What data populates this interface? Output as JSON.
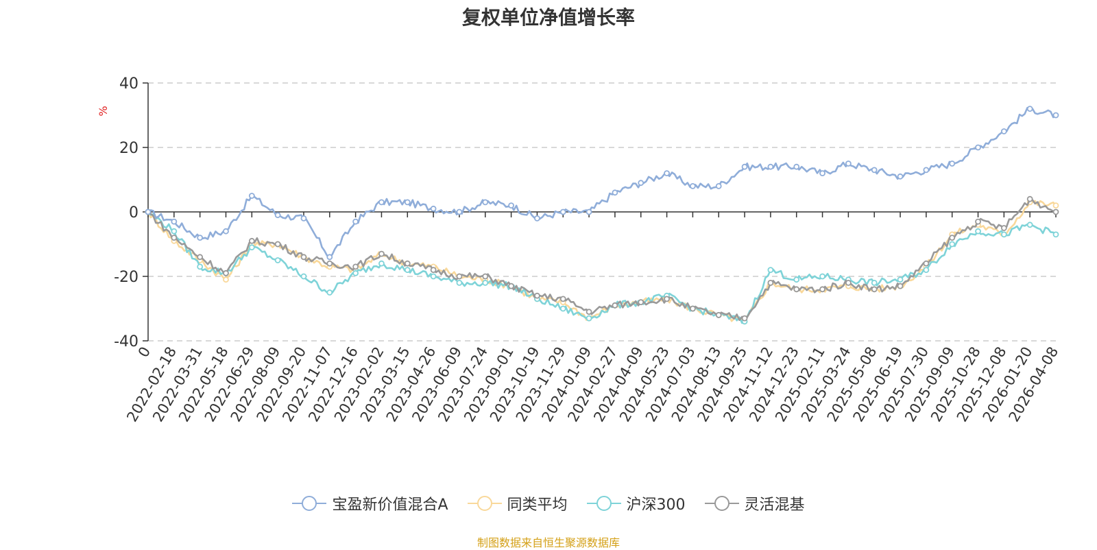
{
  "chart_data": {
    "type": "line",
    "title": "复权单位净值增长率",
    "ylabel": "%",
    "xlabel": "",
    "ylim": [
      -40,
      40
    ],
    "yticks": [
      "40",
      "20",
      "0",
      "-20",
      "-40"
    ],
    "categories": [
      "0",
      "2022-02-18",
      "2022-03-31",
      "2022-05-18",
      "2022-06-29",
      "2022-08-09",
      "2022-09-20",
      "2022-11-07",
      "2022-12-16",
      "2023-02-02",
      "2023-03-15",
      "2023-04-26",
      "2023-06-09",
      "2023-07-24",
      "2023-09-01",
      "2023-10-19",
      "2023-11-29",
      "2024-01-09",
      "2024-02-27",
      "2024-04-09",
      "2024-05-23",
      "2024-07-03",
      "2024-08-13",
      "2024-09-25",
      "2024-11-12",
      "2024-12-23",
      "2025-02-11",
      "2025-03-24",
      "2025-05-08",
      "2025-06-19",
      "2025-07-30",
      "2025-09-09",
      "2025-10-28",
      "2025-12-08",
      "2026-01-20",
      "2026-04-08"
    ],
    "series": [
      {
        "name": "宝盈新价值混合A",
        "color": "#8fadd9",
        "values": [
          0,
          -3,
          -8,
          -6,
          5,
          -1,
          -2,
          -14,
          -3,
          3,
          3,
          1,
          0,
          3,
          2,
          -2,
          0,
          0,
          6,
          9,
          12,
          8,
          8,
          14,
          14,
          14,
          12,
          15,
          13,
          11,
          13,
          15,
          20,
          25,
          32,
          30
        ]
      },
      {
        "name": "同类平均",
        "color": "#f9d89a",
        "values": [
          0,
          -9,
          -15,
          -21,
          -10,
          -10,
          -14,
          -17,
          -18,
          -13,
          -16,
          -17,
          -20,
          -21,
          -23,
          -27,
          -28,
          -33,
          -29,
          -28,
          -27,
          -30,
          -32,
          -34,
          -22,
          -24,
          -24,
          -23,
          -24,
          -23,
          -17,
          -7,
          -4,
          -7,
          3,
          2
        ]
      },
      {
        "name": "沪深300",
        "color": "#7ed3d8",
        "values": [
          0,
          -6,
          -17,
          -19,
          -11,
          -15,
          -20,
          -25,
          -19,
          -16,
          -18,
          -20,
          -22,
          -22,
          -23,
          -27,
          -30,
          -33,
          -29,
          -28,
          -26,
          -30,
          -32,
          -34,
          -18,
          -21,
          -20,
          -21,
          -22,
          -21,
          -18,
          -10,
          -6,
          -7,
          -4,
          -7
        ]
      },
      {
        "name": "灵活混基",
        "color": "#999999",
        "values": [
          0,
          -8,
          -14,
          -19,
          -9,
          -10,
          -14,
          -16,
          -17,
          -13,
          -16,
          -18,
          -20,
          -20,
          -23,
          -26,
          -27,
          -31,
          -29,
          -28,
          -27,
          -30,
          -32,
          -33,
          -22,
          -24,
          -24,
          -22,
          -24,
          -23,
          -16,
          -8,
          -3,
          -5,
          4,
          0
        ]
      }
    ]
  },
  "legend": {
    "items": [
      "宝盈新价值混合A",
      "同类平均",
      "沪深300",
      "灵活混基"
    ]
  },
  "source": "制图数据来自恒生聚源数据库"
}
